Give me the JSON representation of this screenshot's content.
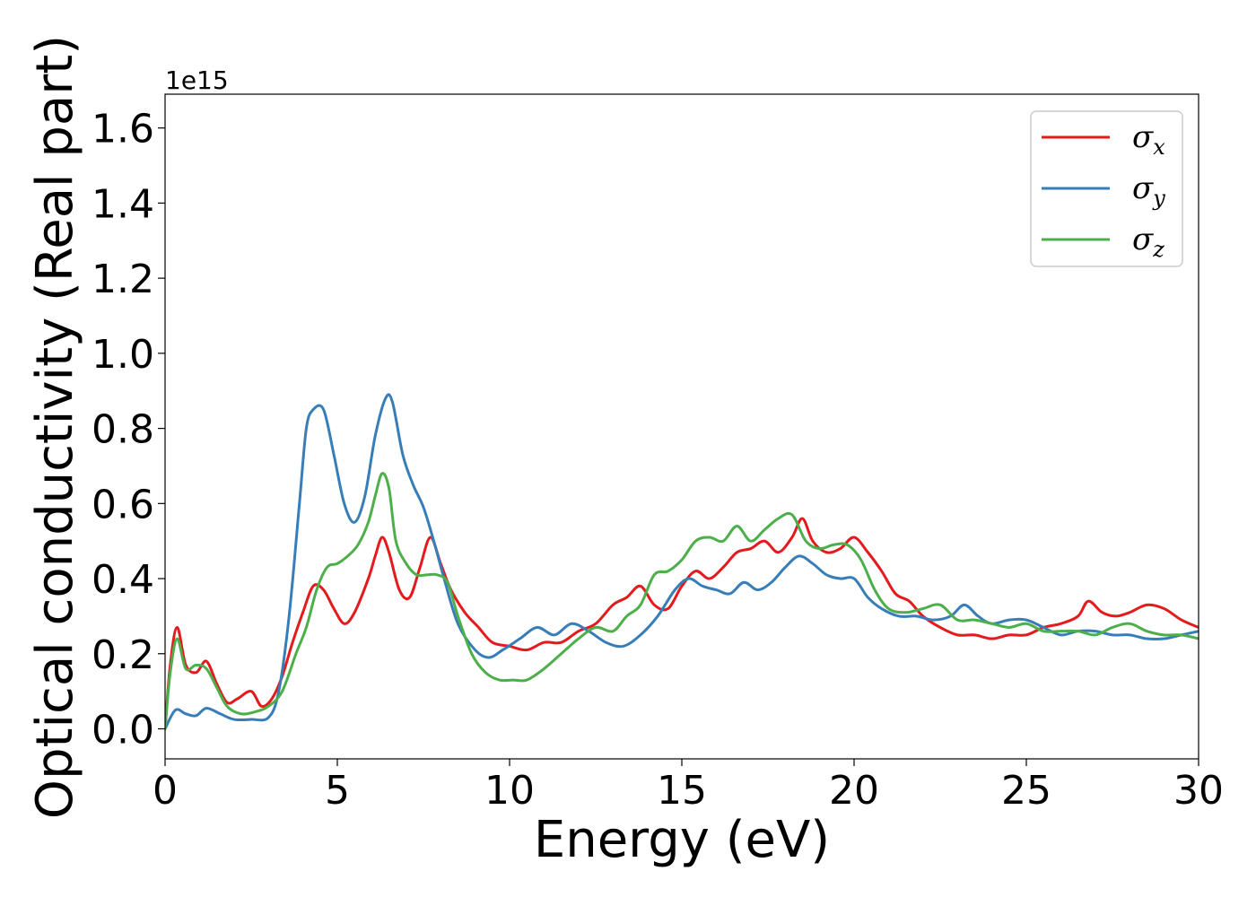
{
  "chart_data": {
    "type": "line",
    "xlabel": "Energy (eV)",
    "ylabel": "Optical conductivity (Real part)",
    "y_offset_label": "1e15",
    "xlim": [
      0,
      30
    ],
    "ylim": [
      -0.08,
      1.69
    ],
    "xticks": [
      0,
      5,
      10,
      15,
      20,
      25,
      30
    ],
    "xtick_labels": [
      "0",
      "5",
      "10",
      "15",
      "20",
      "25",
      "30"
    ],
    "yticks": [
      0.0,
      0.2,
      0.4,
      0.6,
      0.8,
      1.0,
      1.2,
      1.4,
      1.6
    ],
    "ytick_labels": [
      "0.0",
      "0.2",
      "0.4",
      "0.6",
      "0.8",
      "1.0",
      "1.2",
      "1.4",
      "1.6"
    ],
    "grid": false,
    "legend_position": "top-right",
    "series": [
      {
        "name": "σx",
        "symbol": "σ",
        "subscript": "x",
        "color": "#e41a1c",
        "x": [
          0,
          0.15,
          0.35,
          0.6,
          0.9,
          1.2,
          1.5,
          1.8,
          2.1,
          2.5,
          2.8,
          3.1,
          3.4,
          3.7,
          4.0,
          4.3,
          4.6,
          4.9,
          5.2,
          5.5,
          5.9,
          6.1,
          6.3,
          6.5,
          6.8,
          7.1,
          7.4,
          7.7,
          8.0,
          8.3,
          8.7,
          9.1,
          9.5,
          10.0,
          10.5,
          11.0,
          11.5,
          12.0,
          12.5,
          13.0,
          13.4,
          13.8,
          14.2,
          14.6,
          15.0,
          15.4,
          15.8,
          16.2,
          16.6,
          17.0,
          17.4,
          17.8,
          18.2,
          18.5,
          18.8,
          19.2,
          19.6,
          20.0,
          20.4,
          20.8,
          21.2,
          21.6,
          22.0,
          22.5,
          23.0,
          23.5,
          24.0,
          24.5,
          25.0,
          25.5,
          26.0,
          26.5,
          26.8,
          27.2,
          27.6,
          28.0,
          28.5,
          29.0,
          29.5,
          30.0
        ],
        "y": [
          0.0,
          0.17,
          0.27,
          0.17,
          0.15,
          0.18,
          0.12,
          0.07,
          0.08,
          0.1,
          0.06,
          0.08,
          0.14,
          0.23,
          0.31,
          0.38,
          0.37,
          0.32,
          0.28,
          0.31,
          0.4,
          0.46,
          0.51,
          0.47,
          0.37,
          0.35,
          0.43,
          0.51,
          0.44,
          0.37,
          0.31,
          0.27,
          0.23,
          0.22,
          0.21,
          0.23,
          0.23,
          0.26,
          0.28,
          0.33,
          0.35,
          0.38,
          0.33,
          0.32,
          0.38,
          0.42,
          0.4,
          0.43,
          0.47,
          0.48,
          0.5,
          0.47,
          0.51,
          0.56,
          0.5,
          0.47,
          0.48,
          0.51,
          0.47,
          0.42,
          0.36,
          0.34,
          0.3,
          0.27,
          0.25,
          0.25,
          0.24,
          0.25,
          0.25,
          0.27,
          0.28,
          0.3,
          0.34,
          0.31,
          0.3,
          0.31,
          0.33,
          0.32,
          0.29,
          0.27
        ]
      },
      {
        "name": "σy",
        "symbol": "σ",
        "subscript": "y",
        "color": "#377eb8",
        "x": [
          0,
          0.3,
          0.6,
          0.9,
          1.2,
          1.6,
          2.0,
          2.5,
          3.0,
          3.3,
          3.6,
          3.9,
          4.1,
          4.3,
          4.6,
          4.9,
          5.2,
          5.5,
          5.8,
          6.1,
          6.4,
          6.6,
          6.9,
          7.2,
          7.5,
          7.8,
          8.1,
          8.5,
          9.0,
          9.4,
          9.8,
          10.3,
          10.8,
          11.3,
          11.8,
          12.3,
          12.8,
          13.3,
          13.8,
          14.3,
          14.8,
          15.2,
          15.6,
          16.0,
          16.4,
          16.8,
          17.2,
          17.6,
          18.0,
          18.4,
          18.8,
          19.2,
          19.6,
          20.0,
          20.4,
          20.8,
          21.3,
          21.8,
          22.3,
          22.8,
          23.2,
          23.6,
          24.0,
          24.5,
          25.0,
          25.5,
          26.0,
          26.5,
          27.0,
          27.5,
          28.0,
          28.5,
          29.0,
          29.5,
          30.0
        ],
        "y": [
          0.0,
          0.05,
          0.04,
          0.035,
          0.055,
          0.04,
          0.025,
          0.025,
          0.03,
          0.1,
          0.3,
          0.6,
          0.8,
          0.85,
          0.85,
          0.73,
          0.6,
          0.55,
          0.62,
          0.78,
          0.88,
          0.87,
          0.73,
          0.65,
          0.59,
          0.5,
          0.4,
          0.28,
          0.21,
          0.19,
          0.21,
          0.24,
          0.27,
          0.25,
          0.28,
          0.26,
          0.23,
          0.22,
          0.25,
          0.3,
          0.37,
          0.4,
          0.38,
          0.37,
          0.36,
          0.39,
          0.37,
          0.39,
          0.43,
          0.46,
          0.44,
          0.41,
          0.4,
          0.4,
          0.35,
          0.32,
          0.3,
          0.3,
          0.29,
          0.3,
          0.33,
          0.3,
          0.28,
          0.29,
          0.29,
          0.27,
          0.25,
          0.26,
          0.26,
          0.25,
          0.25,
          0.24,
          0.24,
          0.25,
          0.26
        ]
      },
      {
        "name": "σz",
        "symbol": "σ",
        "subscript": "z",
        "color": "#4daf4a",
        "x": [
          0,
          0.15,
          0.35,
          0.6,
          0.9,
          1.2,
          1.5,
          1.8,
          2.2,
          2.6,
          3.0,
          3.4,
          3.8,
          4.1,
          4.4,
          4.7,
          5.0,
          5.3,
          5.6,
          5.9,
          6.1,
          6.3,
          6.5,
          6.7,
          7.0,
          7.3,
          7.6,
          7.9,
          8.2,
          8.5,
          8.9,
          9.3,
          9.7,
          10.1,
          10.5,
          11.0,
          11.5,
          12.0,
          12.5,
          13.0,
          13.4,
          13.8,
          14.2,
          14.6,
          15.0,
          15.4,
          15.8,
          16.2,
          16.6,
          17.0,
          17.4,
          17.8,
          18.2,
          18.6,
          19.0,
          19.4,
          19.8,
          20.2,
          20.6,
          21.0,
          21.5,
          22.0,
          22.5,
          23.0,
          23.5,
          24.0,
          24.5,
          25.0,
          25.5,
          26.0,
          26.5,
          27.0,
          27.5,
          28.0,
          28.5,
          29.0,
          29.5,
          30.0
        ],
        "y": [
          0.0,
          0.15,
          0.24,
          0.16,
          0.17,
          0.16,
          0.11,
          0.06,
          0.04,
          0.045,
          0.06,
          0.1,
          0.2,
          0.27,
          0.37,
          0.43,
          0.44,
          0.46,
          0.49,
          0.55,
          0.62,
          0.68,
          0.64,
          0.5,
          0.44,
          0.41,
          0.41,
          0.41,
          0.39,
          0.3,
          0.2,
          0.15,
          0.13,
          0.13,
          0.13,
          0.16,
          0.2,
          0.24,
          0.27,
          0.26,
          0.3,
          0.33,
          0.41,
          0.42,
          0.45,
          0.5,
          0.51,
          0.5,
          0.54,
          0.5,
          0.53,
          0.56,
          0.57,
          0.5,
          0.48,
          0.49,
          0.49,
          0.45,
          0.37,
          0.32,
          0.31,
          0.32,
          0.33,
          0.29,
          0.29,
          0.28,
          0.27,
          0.28,
          0.26,
          0.26,
          0.26,
          0.25,
          0.27,
          0.28,
          0.26,
          0.25,
          0.25,
          0.24
        ]
      }
    ]
  }
}
